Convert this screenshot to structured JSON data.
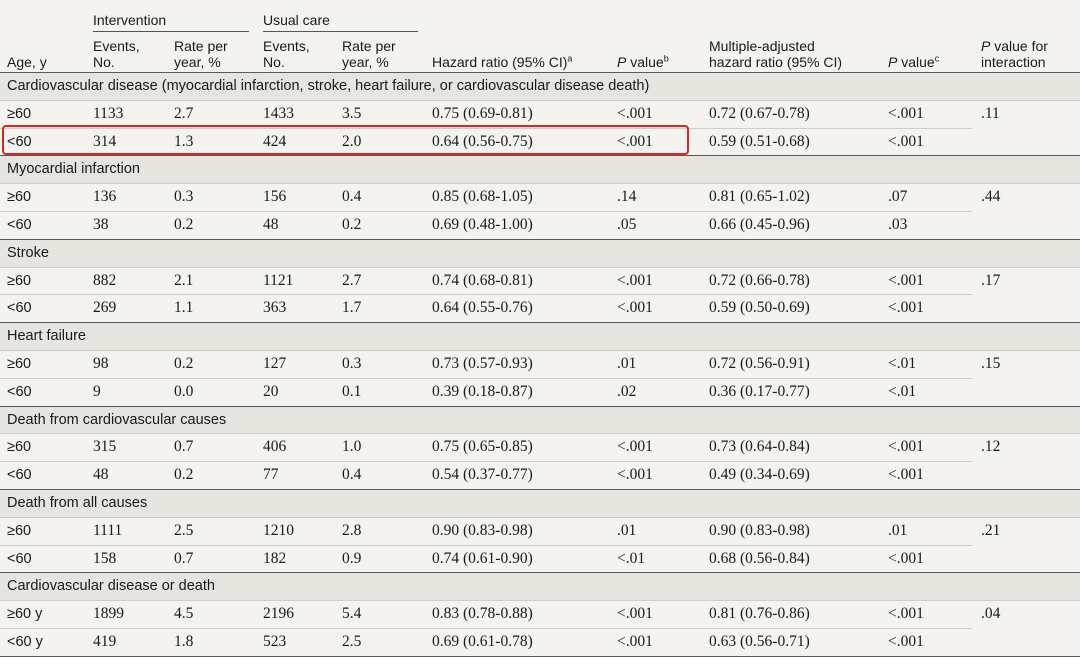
{
  "header": {
    "group_intervention": "Intervention",
    "group_usual": "Usual care",
    "col_age": "Age, y",
    "col_events_1": "Events,",
    "col_events_2": "No.",
    "col_rate_1": "Rate per",
    "col_rate_2": "year, %",
    "col_hr": "Hazard ratio (95% CI)",
    "col_hr_sup": "a",
    "col_p_italic": "P",
    "col_p_rest": " value",
    "col_p_sup": "b",
    "col_madj_1": "Multiple-adjusted",
    "col_madj_2": "hazard ratio (95% CI)",
    "col_p2_sup": "c",
    "col_pint_italic": "P",
    "col_pint_1": " value for",
    "col_pint_2": "interaction"
  },
  "sections": [
    {
      "title": "Cardiovascular disease (myocardial infarction, stroke, heart failure, or cardiovascular disease death)",
      "p_interaction": ".11",
      "rows": [
        {
          "age": "≥60",
          "int_events": "1133",
          "int_rate": "2.7",
          "uc_events": "1433",
          "uc_rate": "3.5",
          "hr": "0.75 (0.69-0.81)",
          "p": "<.001",
          "madj": "0.72 (0.67-0.78)",
          "p2": "<.001"
        },
        {
          "age": "<60",
          "int_events": "314",
          "int_rate": "1.3",
          "uc_events": "424",
          "uc_rate": "2.0",
          "hr": "0.64 (0.56-0.75)",
          "p": "<.001",
          "madj": "0.59 (0.51-0.68)",
          "p2": "<.001"
        }
      ]
    },
    {
      "title": "Myocardial infarction",
      "p_interaction": ".44",
      "rows": [
        {
          "age": "≥60",
          "int_events": "136",
          "int_rate": "0.3",
          "uc_events": "156",
          "uc_rate": "0.4",
          "hr": "0.85 (0.68-1.05)",
          "p": ".14",
          "madj": "0.81 (0.65-1.02)",
          "p2": ".07"
        },
        {
          "age": "<60",
          "int_events": "38",
          "int_rate": "0.2",
          "uc_events": "48",
          "uc_rate": "0.2",
          "hr": "0.69 (0.48-1.00)",
          "p": ".05",
          "madj": "0.66 (0.45-0.96)",
          "p2": ".03"
        }
      ]
    },
    {
      "title": "Stroke",
      "p_interaction": ".17",
      "rows": [
        {
          "age": "≥60",
          "int_events": "882",
          "int_rate": "2.1",
          "uc_events": "1121",
          "uc_rate": "2.7",
          "hr": "0.74 (0.68-0.81)",
          "p": "<.001",
          "madj": "0.72 (0.66-0.78)",
          "p2": "<.001"
        },
        {
          "age": "<60",
          "int_events": "269",
          "int_rate": "1.1",
          "uc_events": "363",
          "uc_rate": "1.7",
          "hr": "0.64 (0.55-0.76)",
          "p": "<.001",
          "madj": "0.59 (0.50-0.69)",
          "p2": "<.001"
        }
      ]
    },
    {
      "title": "Heart failure",
      "p_interaction": ".15",
      "rows": [
        {
          "age": "≥60",
          "int_events": "98",
          "int_rate": "0.2",
          "uc_events": "127",
          "uc_rate": "0.3",
          "hr": "0.73 (0.57-0.93)",
          "p": ".01",
          "madj": "0.72 (0.56-0.91)",
          "p2": "<.01"
        },
        {
          "age": "<60",
          "int_events": "9",
          "int_rate": "0.0",
          "uc_events": "20",
          "uc_rate": "0.1",
          "hr": "0.39 (0.18-0.87)",
          "p": ".02",
          "madj": "0.36 (0.17-0.77)",
          "p2": "<.01"
        }
      ]
    },
    {
      "title": "Death from cardiovascular causes",
      "p_interaction": ".12",
      "rows": [
        {
          "age": "≥60",
          "int_events": "315",
          "int_rate": "0.7",
          "uc_events": "406",
          "uc_rate": "1.0",
          "hr": "0.75 (0.65-0.85)",
          "p": "<.001",
          "madj": "0.73 (0.64-0.84)",
          "p2": "<.001"
        },
        {
          "age": "<60",
          "int_events": "48",
          "int_rate": "0.2",
          "uc_events": "77",
          "uc_rate": "0.4",
          "hr": "0.54 (0.37-0.77)",
          "p": "<.001",
          "madj": "0.49 (0.34-0.69)",
          "p2": "<.001"
        }
      ]
    },
    {
      "title": "Death from all causes",
      "p_interaction": ".21",
      "rows": [
        {
          "age": "≥60",
          "int_events": "1111",
          "int_rate": "2.5",
          "uc_events": "1210",
          "uc_rate": "2.8",
          "hr": "0.90 (0.83-0.98)",
          "p": ".01",
          "madj": "0.90 (0.83-0.98)",
          "p2": ".01"
        },
        {
          "age": "<60",
          "int_events": "158",
          "int_rate": "0.7",
          "uc_events": "182",
          "uc_rate": "0.9",
          "hr": "0.74 (0.61-0.90)",
          "p": "<.01",
          "madj": "0.68 (0.56-0.84)",
          "p2": "<.001"
        }
      ]
    },
    {
      "title": "Cardiovascular disease or death",
      "p_interaction": ".04",
      "rows": [
        {
          "age": "≥60 y",
          "int_events": "1899",
          "int_rate": "4.5",
          "uc_events": "2196",
          "uc_rate": "5.4",
          "hr": "0.83 (0.78-0.88)",
          "p": "<.001",
          "madj": "0.81 (0.76-0.86)",
          "p2": "<.001"
        },
        {
          "age": "<60 y",
          "int_events": "419",
          "int_rate": "1.8",
          "uc_events": "523",
          "uc_rate": "2.5",
          "hr": "0.69 (0.61-0.78)",
          "p": "<.001",
          "madj": "0.63 (0.56-0.71)",
          "p2": "<.001"
        }
      ]
    }
  ],
  "colors": {
    "background": "#f4f3ef",
    "section_shade": "#e6e5e0",
    "text": "#1a1a1a",
    "highlight": "#e0232a"
  }
}
